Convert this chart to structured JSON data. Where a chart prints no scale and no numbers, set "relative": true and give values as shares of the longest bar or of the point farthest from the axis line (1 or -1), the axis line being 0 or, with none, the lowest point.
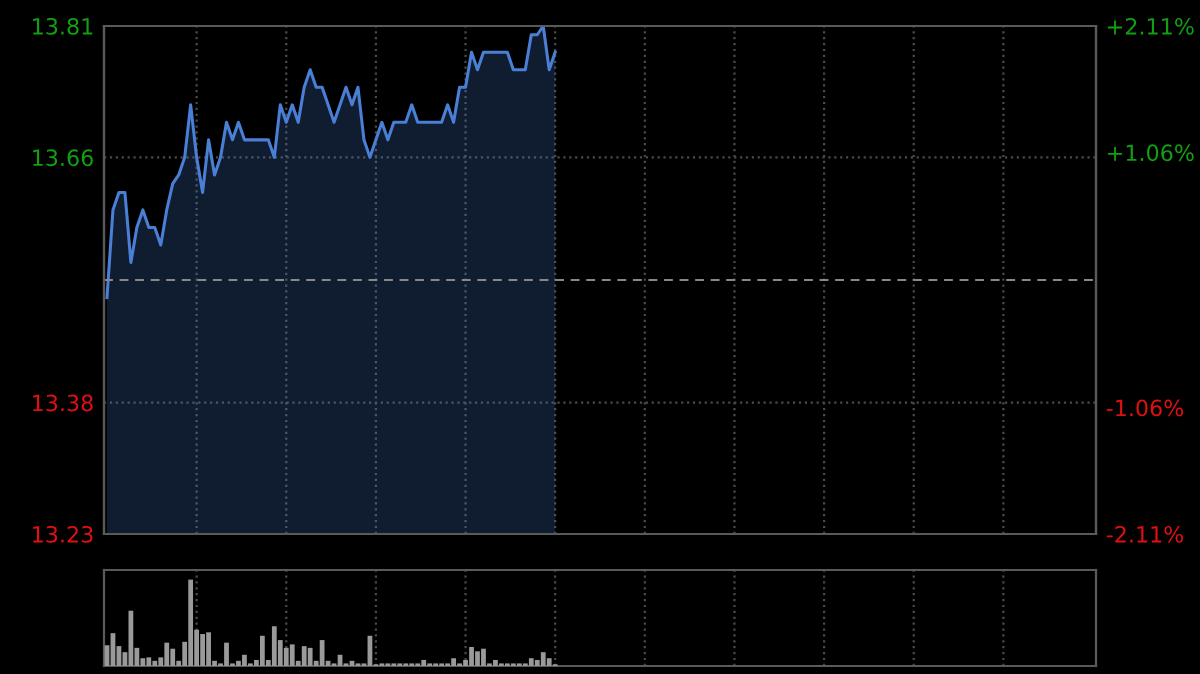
{
  "chart_data": [
    {
      "type": "area",
      "categories": [
        null,
        null,
        null,
        null,
        null,
        null,
        null,
        null,
        null,
        null,
        null,
        null,
        null,
        null,
        null,
        null,
        null,
        null,
        null,
        null,
        null,
        null,
        null,
        null,
        null,
        null,
        null,
        null,
        null,
        null,
        null,
        null,
        null,
        null,
        null,
        null,
        null,
        null,
        null,
        null,
        null,
        null,
        null,
        null,
        null,
        null,
        null,
        null,
        null,
        null,
        null,
        null,
        null,
        null,
        null,
        null,
        null,
        null,
        null,
        null,
        null,
        null,
        null,
        null,
        null,
        null,
        null,
        null,
        null,
        null,
        null,
        null,
        null,
        null,
        null,
        null,
        null,
        null,
        null,
        null,
        null,
        null,
        null,
        null,
        null,
        null,
        null,
        null,
        null,
        null,
        null,
        null,
        null,
        null,
        null,
        null,
        null,
        null,
        null,
        null,
        null,
        null,
        null,
        null,
        null,
        null,
        null,
        null,
        null,
        null,
        null,
        null,
        null,
        null,
        null,
        null,
        null,
        null,
        null,
        null,
        null,
        null,
        null,
        null,
        null,
        null,
        null,
        null,
        null,
        null,
        null,
        null,
        null,
        null,
        null,
        null,
        null,
        null,
        null,
        null,
        null,
        null,
        null,
        null,
        null,
        null,
        null,
        null,
        null,
        null,
        null,
        null,
        null,
        null,
        null,
        null,
        null,
        null,
        null,
        null,
        null,
        null,
        null,
        null,
        null,
        null
      ],
      "series": [
        {
          "color": "#4a7fd6",
          "values": [
            13.5,
            13.6,
            13.62,
            13.62,
            13.54,
            13.58,
            13.6,
            13.58,
            13.58,
            13.56,
            13.6,
            13.63,
            13.64,
            13.66,
            13.72,
            13.66,
            13.62,
            13.68,
            13.64,
            13.66,
            13.7,
            13.68,
            13.7,
            13.68,
            13.68,
            13.68,
            13.68,
            13.68,
            13.66,
            13.72,
            13.7,
            13.72,
            13.7,
            13.74,
            13.76,
            13.74,
            13.74,
            13.72,
            13.7,
            13.72,
            13.74,
            13.72,
            13.74,
            13.68,
            13.66,
            13.68,
            13.7,
            13.68,
            13.7,
            13.7,
            13.7,
            13.72,
            13.7,
            13.7,
            13.7,
            13.7,
            13.7,
            13.72,
            13.7,
            13.74,
            13.74,
            13.78,
            13.76,
            13.78,
            13.78,
            13.78,
            13.78,
            13.78,
            13.76,
            13.76,
            13.76,
            13.8,
            13.8,
            13.81,
            13.76,
            13.78,
            null,
            null,
            null,
            null,
            null,
            null,
            null,
            null,
            null,
            null,
            null,
            null,
            null,
            null,
            null,
            null,
            null,
            null,
            null,
            null,
            null,
            null,
            null,
            null,
            null,
            null,
            null,
            null,
            null,
            null,
            null,
            null,
            null,
            null,
            null,
            null,
            null,
            null,
            null,
            null,
            null,
            null,
            null,
            null,
            null,
            null,
            null,
            null,
            null,
            null,
            null,
            null,
            null,
            null,
            null,
            null,
            null,
            null,
            null,
            null,
            null,
            null,
            null,
            null,
            null,
            null,
            null,
            null,
            null,
            null,
            null,
            null,
            null,
            null,
            null,
            null,
            null,
            null,
            null,
            null,
            null,
            null,
            null,
            null,
            null,
            null,
            null,
            null,
            null,
            null
          ]
        }
      ],
      "ylim": [
        13.23,
        13.81
      ],
      "yticks": [
        13.23,
        13.38,
        13.66,
        13.81
      ],
      "y2lim": [
        -2.11,
        2.11
      ],
      "y2ticks": [
        {
          "value": -2.11,
          "label": "-2.11%"
        },
        {
          "value": -1.06,
          "label": "-1.06%"
        },
        {
          "value": 1.06,
          "label": "+1.06%"
        },
        {
          "value": 2.11,
          "label": "+2.11%"
        }
      ],
      "ref_lines": [
        {
          "axis": "y",
          "value": 13.52,
          "color": "#888888",
          "line_style": "dashed"
        }
      ],
      "grid": true,
      "tick_labels": "y"
    },
    {
      "type": "bar",
      "relative": true,
      "categories": [
        null,
        null,
        null,
        null,
        null,
        null,
        null,
        null,
        null,
        null,
        null,
        null,
        null,
        null,
        null,
        null,
        null,
        null,
        null,
        null,
        null,
        null,
        null,
        null,
        null,
        null,
        null,
        null,
        null,
        null,
        null,
        null,
        null,
        null,
        null,
        null,
        null,
        null,
        null,
        null,
        null,
        null,
        null,
        null,
        null,
        null,
        null,
        null,
        null,
        null,
        null,
        null,
        null,
        null,
        null,
        null,
        null,
        null,
        null,
        null,
        null,
        null,
        null,
        null,
        null,
        null,
        null,
        null,
        null,
        null,
        null,
        null,
        null,
        null,
        null,
        null,
        null,
        null,
        null,
        null,
        null,
        null,
        null,
        null,
        null,
        null,
        null,
        null,
        null,
        null,
        null,
        null,
        null,
        null,
        null,
        null,
        null,
        null,
        null,
        null,
        null,
        null,
        null,
        null,
        null,
        null,
        null,
        null,
        null,
        null,
        null,
        null,
        null,
        null,
        null,
        null,
        null,
        null,
        null,
        null,
        null,
        null,
        null,
        null,
        null,
        null,
        null,
        null,
        null,
        null,
        null,
        null,
        null,
        null,
        null,
        null,
        null,
        null,
        null,
        null,
        null,
        null,
        null,
        null,
        null,
        null,
        null,
        null,
        null,
        null,
        null,
        null,
        null,
        null,
        null,
        null,
        null,
        null,
        null,
        null,
        null,
        null,
        null,
        null,
        null,
        null
      ],
      "series": [
        {
          "color": "#9a9a9a",
          "values": [
            0.24,
            0.38,
            0.23,
            0.16,
            0.64,
            0.21,
            0.09,
            0.1,
            0.06,
            0.1,
            0.27,
            0.2,
            0.06,
            0.28,
            1,
            0.42,
            0.37,
            0.39,
            0.06,
            0.03,
            0.27,
            0.03,
            0.06,
            0.13,
            0.03,
            0.07,
            0.35,
            0.07,
            0.46,
            0.3,
            0.21,
            0.25,
            0.06,
            0.23,
            0.21,
            0.06,
            0.3,
            0.06,
            0.03,
            0.13,
            0.03,
            0.06,
            0.03,
            0.03,
            0.35,
            0.02,
            0.03,
            0.03,
            0.03,
            0.03,
            0.03,
            0.03,
            0.03,
            0.07,
            0.03,
            0.03,
            0.03,
            0.03,
            0.09,
            0.03,
            0.07,
            0.22,
            0.17,
            0.2,
            0.03,
            0.07,
            0.03,
            0.03,
            0.03,
            0.03,
            0.03,
            0.09,
            0.07,
            0.16,
            0.09,
            0.02,
            null,
            null,
            null,
            null,
            null,
            null,
            null,
            null,
            null,
            null,
            null,
            null,
            null,
            null,
            null,
            null,
            null,
            null,
            null,
            null,
            null,
            null,
            null,
            null,
            null,
            null,
            null,
            null,
            null,
            null,
            null,
            null,
            null,
            null,
            null,
            null,
            null,
            null,
            null,
            null,
            null,
            null,
            null,
            null,
            null,
            null,
            null,
            null,
            null,
            null,
            null,
            null,
            null,
            null,
            null,
            null,
            null,
            null,
            null,
            null,
            null,
            null,
            null,
            null,
            null,
            null,
            null,
            null,
            null,
            null,
            null,
            null,
            null,
            null,
            null,
            null,
            null,
            null,
            null,
            null,
            null,
            null,
            null,
            null,
            null,
            null,
            null,
            null,
            null,
            null
          ]
        }
      ],
      "grid": "x",
      "tick_labels": false
    }
  ]
}
